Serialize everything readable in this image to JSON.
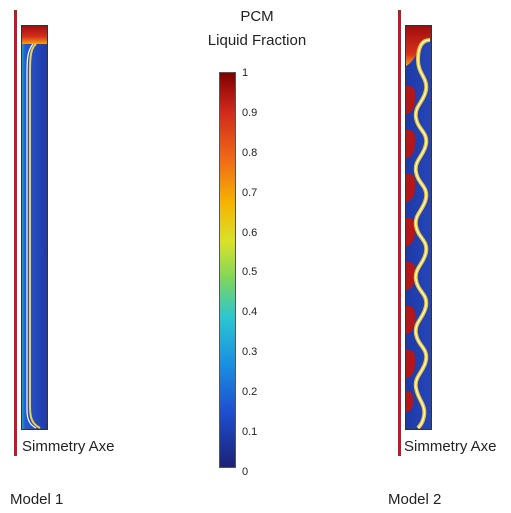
{
  "legend": {
    "title_line1": "PCM",
    "title_line2": "Liquid Fraction",
    "ticks": [
      "1",
      "0.9",
      "0.8",
      "0.7",
      "0.6",
      "0.5",
      "0.4",
      "0.3",
      "0.2",
      "0.1",
      "0"
    ],
    "colors": [
      "#8b0000",
      "#d42a1a",
      "#f06a17",
      "#f5b400",
      "#d8e22a",
      "#7fd65a",
      "#2bc6d2",
      "#1a8fe0",
      "#1e4fd0",
      "#1b2a9a"
    ]
  },
  "models": [
    {
      "name": "Model  1",
      "axis_label": "Simmetry Axe"
    },
    {
      "name": "Model  2",
      "axis_label": "Simmetry Axe"
    }
  ]
}
